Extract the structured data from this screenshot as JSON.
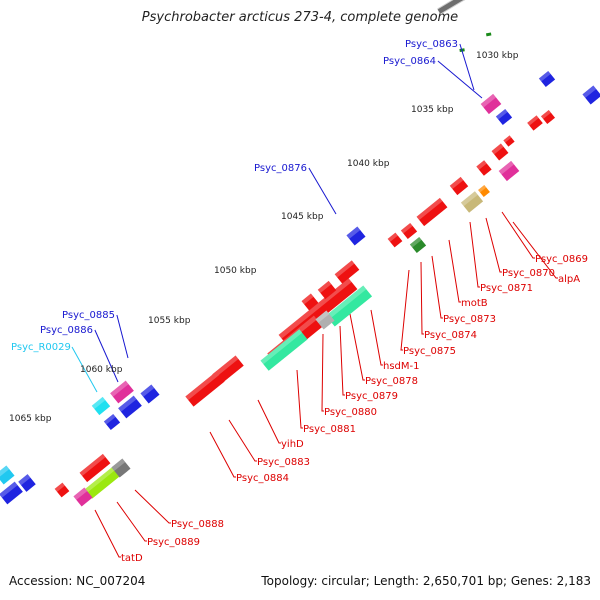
{
  "title": "Psychrobacter arcticus 273-4, complete genome",
  "footer": {
    "accession": "Accession: NC_007204",
    "summary": "Topology: circular; Length: 2,650,701 bp; Genes: 2,183"
  },
  "colors": {
    "backbone": "#6e6e6e",
    "tick_dots": "#1a8a1a",
    "forward_label": "#1818d0",
    "reverse_label": "#dd0000",
    "rna_label": "#20c8f0"
  },
  "scale_ticks": [
    "1030 kbp",
    "1035 kbp",
    "1040 kbp",
    "1045 kbp",
    "1050 kbp",
    "1055 kbp",
    "1060 kbp",
    "1065 kbp"
  ],
  "forward_labels": [
    "Psyc_0863",
    "Psyc_0864",
    "Psyc_0876",
    "Psyc_0885",
    "Psyc_0886",
    "Psyc_R0029"
  ],
  "reverse_labels": [
    "Psyc_0869",
    "Psyc_0870",
    "alpA",
    "Psyc_0871",
    "motB",
    "Psyc_0873",
    "Psyc_0874",
    "Psyc_0875",
    "hsdM-1",
    "Psyc_0878",
    "Psyc_0879",
    "Psyc_0880",
    "Psyc_0881",
    "yihD",
    "Psyc_0883",
    "Psyc_0884",
    "Psyc_0888",
    "Psyc_0889",
    "tatD"
  ]
}
